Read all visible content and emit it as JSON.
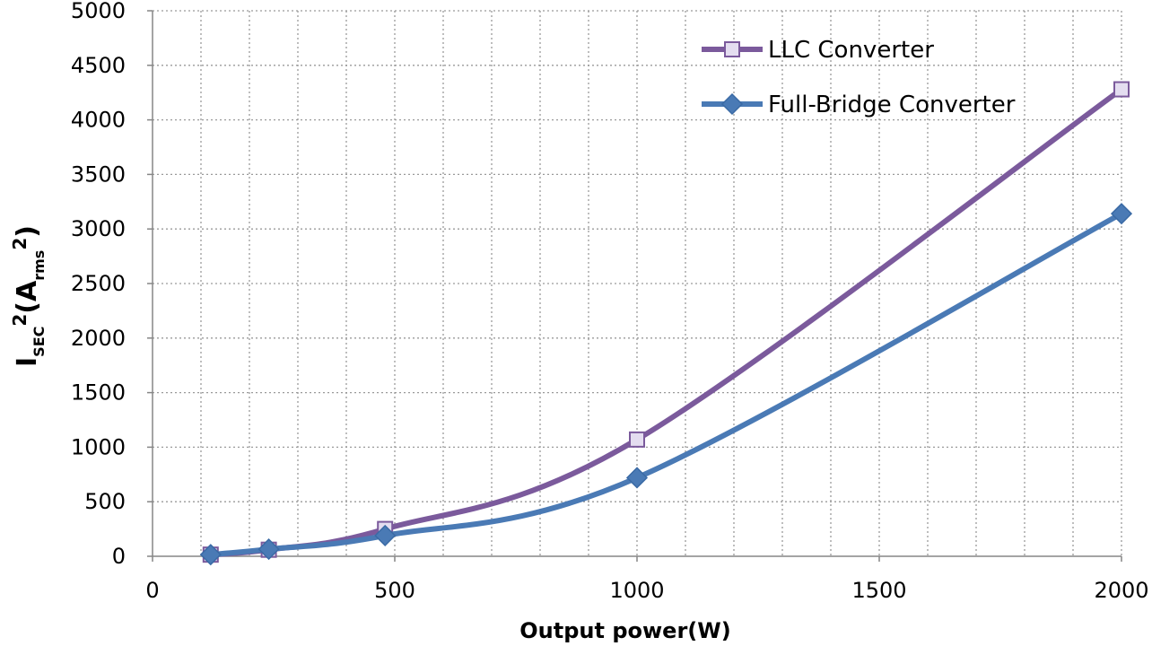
{
  "chart_data": {
    "type": "line",
    "xlabel": "Output power(W)",
    "ylabel": {
      "main": "I",
      "sub1": "SEC",
      "sup1": "2",
      "paren_open": "(A",
      "sub2": "rms",
      "sup2": "2",
      "paren_close": ")"
    },
    "xlim": [
      0,
      2000
    ],
    "ylim": [
      0,
      5000
    ],
    "x_ticks": [
      0,
      500,
      1000,
      1500,
      2000
    ],
    "y_ticks": [
      0,
      500,
      1000,
      1500,
      2000,
      2500,
      3000,
      3500,
      4000,
      4500,
      5000
    ],
    "x_minor_step": 100,
    "grid": true,
    "legend_position": "top-right",
    "series": [
      {
        "name": "LLC Converter",
        "color": "#7b5a9c",
        "marker": "square",
        "x": [
          120,
          240,
          480,
          1000,
          2000
        ],
        "y": [
          15,
          60,
          250,
          1070,
          4280
        ]
      },
      {
        "name": "Full-Bridge Converter",
        "color": "#4a7ab5",
        "marker": "diamond",
        "x": [
          120,
          240,
          480,
          1000,
          2000
        ],
        "y": [
          15,
          65,
          190,
          720,
          3140
        ]
      }
    ]
  }
}
